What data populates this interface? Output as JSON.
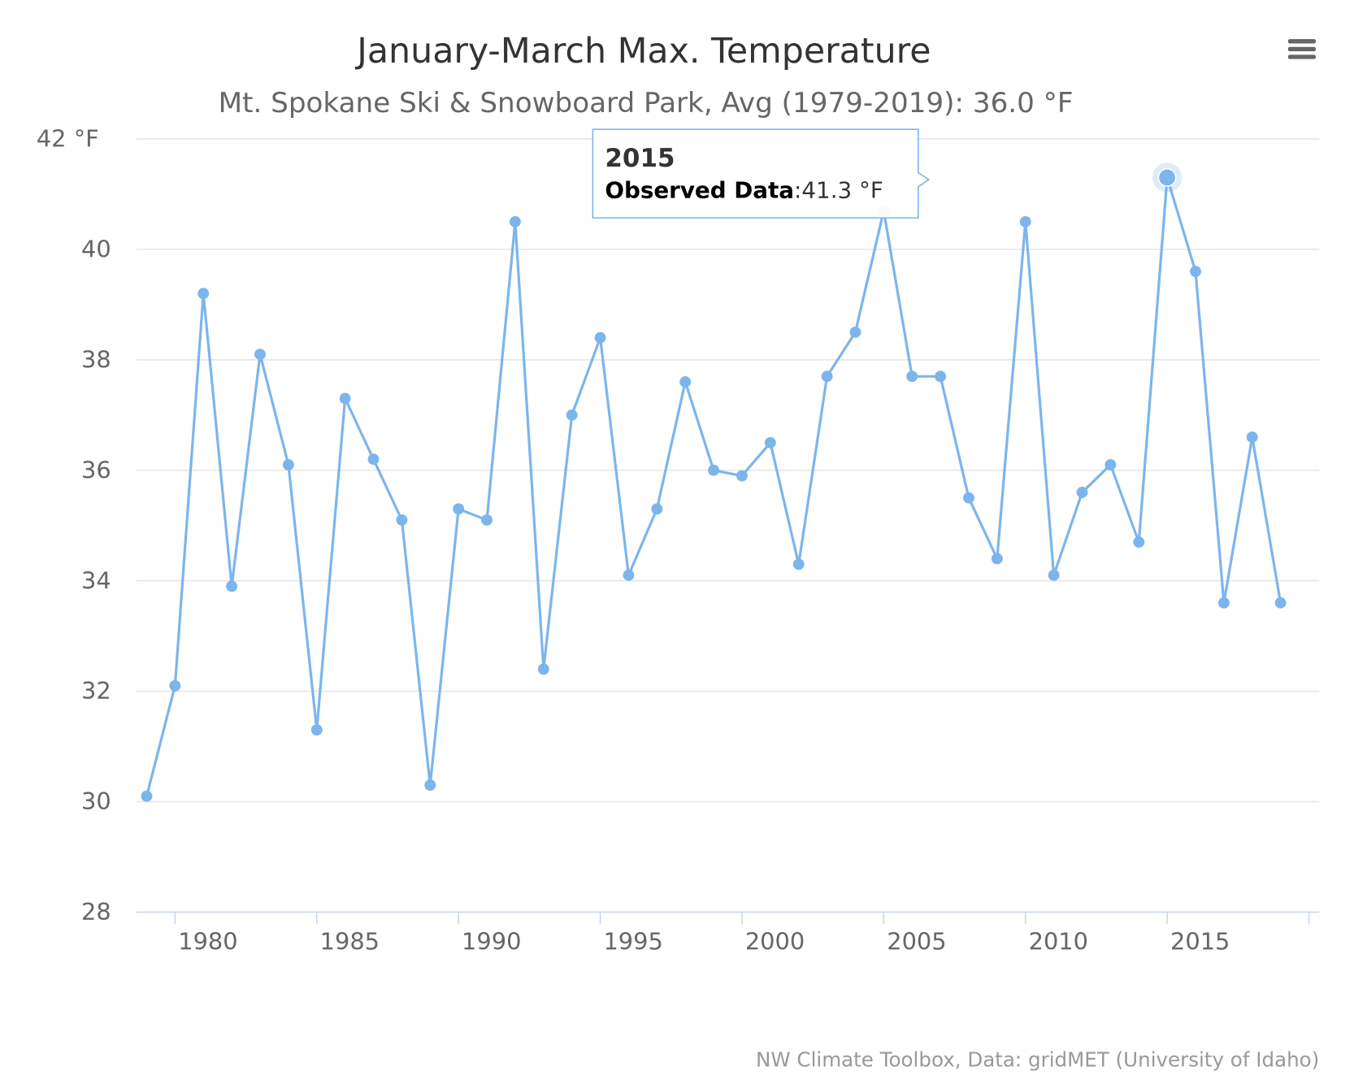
{
  "chart_data": {
    "type": "line",
    "title": "January-March Max. Temperature",
    "subtitle": "Mt. Spokane Ski & Snowboard Park, Avg (1979-2019): 36.0 °F",
    "credits": "NW Climate Toolbox, Data: gridMET (University of Idaho)",
    "xlabel": "",
    "ylabel": "",
    "ylim": [
      28,
      42
    ],
    "xlim": [
      1979,
      2020
    ],
    "y_ticks": [
      "28",
      "30",
      "32",
      "34",
      "36",
      "38",
      "40",
      "42 °F"
    ],
    "x_ticks": [
      "1980",
      "1985",
      "1990",
      "1995",
      "2000",
      "2005",
      "2010",
      "2015"
    ],
    "grid": true,
    "color": "#7cb5ec",
    "series": [
      {
        "name": "Observed Data",
        "x": [
          1979,
          1980,
          1981,
          1982,
          1983,
          1984,
          1985,
          1986,
          1987,
          1988,
          1989,
          1990,
          1991,
          1992,
          1993,
          1994,
          1995,
          1996,
          1997,
          1998,
          1999,
          2000,
          2001,
          2002,
          2003,
          2004,
          2005,
          2006,
          2007,
          2008,
          2009,
          2010,
          2011,
          2012,
          2013,
          2014,
          2015,
          2016,
          2017,
          2018,
          2019
        ],
        "values": [
          30.1,
          32.1,
          39.2,
          33.9,
          38.1,
          36.1,
          31.3,
          37.3,
          36.2,
          35.1,
          30.3,
          35.3,
          35.1,
          40.5,
          32.4,
          37.0,
          38.4,
          34.1,
          35.3,
          37.6,
          36.0,
          35.9,
          36.5,
          34.3,
          37.7,
          38.5,
          40.7,
          37.7,
          37.7,
          35.5,
          34.4,
          40.5,
          34.1,
          35.6,
          36.1,
          34.7,
          41.3,
          39.6,
          33.6,
          36.6,
          33.6
        ]
      }
    ],
    "tooltip": {
      "year": "2015",
      "series_label": "Observed Data",
      "value_text": ":41.3 °F"
    }
  },
  "menu": {
    "icon": "hamburger-menu-icon"
  }
}
